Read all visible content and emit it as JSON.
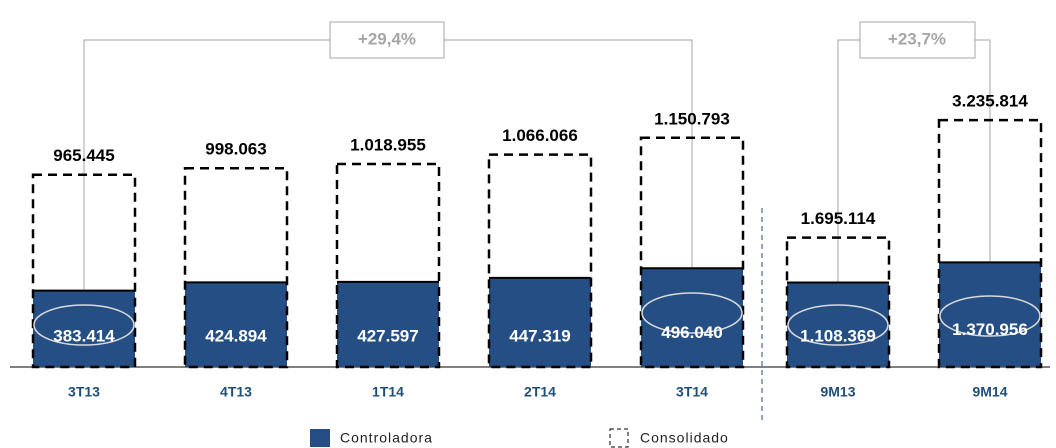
{
  "chart_data": [
    {
      "type": "bar",
      "categories": [
        "3T13",
        "4T13",
        "1T14",
        "2T14",
        "3T14"
      ],
      "series": [
        {
          "name": "Controladora",
          "color": "#254f84",
          "values": [
            383414,
            424894,
            427597,
            447319,
            496040
          ],
          "value_labels": [
            "383.414",
            "424.894",
            "427.597",
            "447.319",
            "496.040"
          ]
        },
        {
          "name": "Consolidado",
          "color": "#000000",
          "values": [
            965445,
            998063,
            1018955,
            1066066,
            1150793
          ],
          "value_labels": [
            "965.445",
            "998.063",
            "1.018.955",
            "1.066.066",
            "1.150.793"
          ]
        }
      ],
      "annotation": "+29,4%",
      "ylim": [
        0,
        1200000
      ]
    },
    {
      "type": "bar",
      "categories": [
        "9M13",
        "9M14"
      ],
      "series": [
        {
          "color": "#254f84",
          "values": [
            1108369,
            1370956
          ],
          "value_labels": [
            "1.108.369",
            "1.370.956"
          ]
        },
        {
          "color": "#000000",
          "values": [
            1695114,
            3235814
          ],
          "value_labels": [
            "1.695.114",
            "3.235.814"
          ]
        }
      ],
      "annotation": "+23,7%",
      "ylim": [
        0,
        3500000
      ]
    }
  ]
}
